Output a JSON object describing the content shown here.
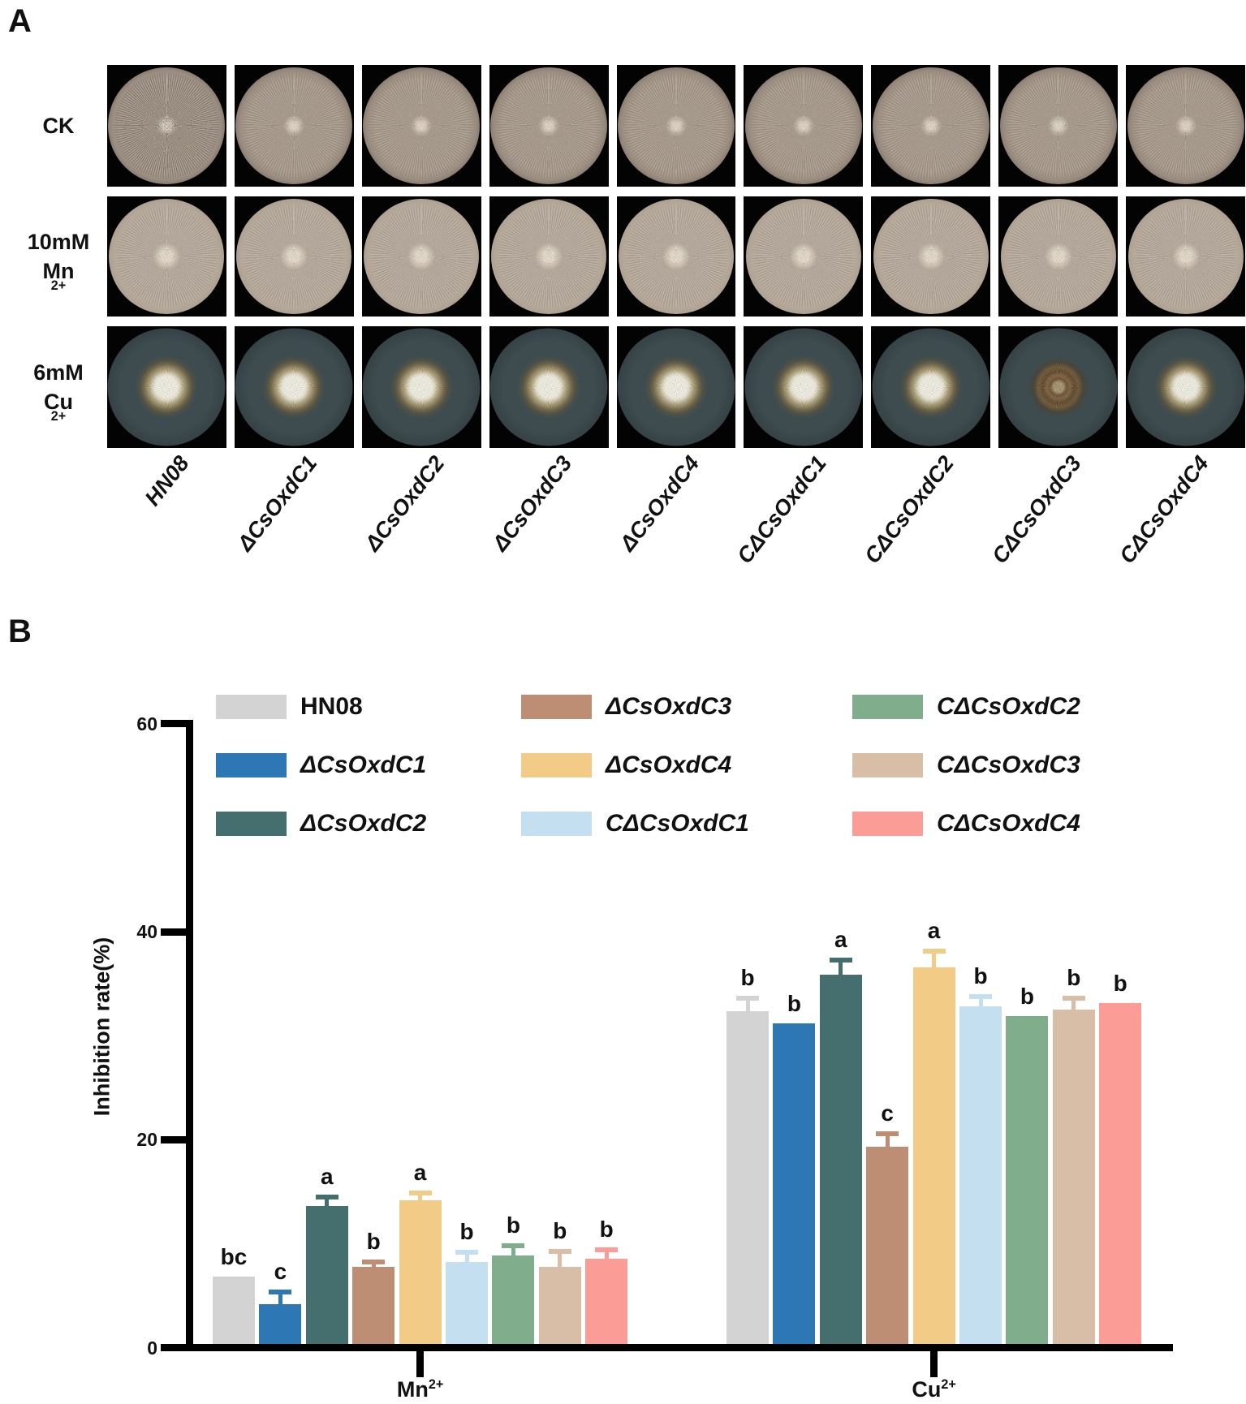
{
  "figure": {
    "panel_a_label": "A",
    "panel_b_label": "B"
  },
  "panel_a": {
    "row_labels": [
      [
        "CK"
      ],
      [
        "10mM",
        "Mn²⁺"
      ],
      [
        "6mM",
        "Cu²⁺"
      ]
    ],
    "column_labels": [
      "HN08",
      "ΔCsOxdC1",
      "ΔCsOxdC2",
      "ΔCsOxdC3",
      "ΔCsOxdC4",
      "CΔCsOxdC1",
      "CΔCsOxdC2",
      "CΔCsOxdC3",
      "CΔCsOxdC4"
    ],
    "dish_types_by_row": [
      "full-colony",
      "full-colony-bright",
      "small-central-colony"
    ]
  },
  "chart_data": {
    "type": "bar",
    "title": "",
    "ylabel": "Inhibition rate(%)",
    "ylim": [
      0,
      60
    ],
    "yticks": [
      0,
      20,
      40,
      60
    ],
    "grid": false,
    "legend_position": "top",
    "groups": [
      "Mn²⁺",
      "Cu²⁺"
    ],
    "series": [
      {
        "name": "HN08",
        "color": "#d3d3d3",
        "values": [
          6.5,
          32.0
        ],
        "errors": [
          0,
          1.3
        ],
        "letters": [
          "bc",
          "b"
        ]
      },
      {
        "name": "ΔCsOxdC1",
        "color": "#2e77b5",
        "values": [
          3.8,
          30.8
        ],
        "errors": [
          1.3,
          0
        ],
        "letters": [
          "c",
          "b"
        ]
      },
      {
        "name": "ΔCsOxdC2",
        "color": "#456f6f",
        "values": [
          13.3,
          35.5
        ],
        "errors": [
          0.9,
          1.5
        ],
        "letters": [
          "a",
          "a"
        ]
      },
      {
        "name": "ΔCsOxdC3",
        "color": "#bd8e74",
        "values": [
          7.4,
          19.0
        ],
        "errors": [
          0.6,
          1.3
        ],
        "letters": [
          "b",
          "c"
        ]
      },
      {
        "name": "ΔCsOxdC4",
        "color": "#f2cb87",
        "values": [
          13.8,
          36.2
        ],
        "errors": [
          0.8,
          1.7
        ],
        "letters": [
          "a",
          "a"
        ]
      },
      {
        "name": "CΔCsOxdC1",
        "color": "#c3dff0",
        "values": [
          7.9,
          32.5
        ],
        "errors": [
          1.0,
          1.0
        ],
        "letters": [
          "b",
          "b"
        ]
      },
      {
        "name": "CΔCsOxdC2",
        "color": "#80ad8c",
        "values": [
          8.5,
          31.5
        ],
        "errors": [
          1.0,
          0
        ],
        "letters": [
          "b",
          "b"
        ]
      },
      {
        "name": "CΔCsOxdC3",
        "color": "#d8bda7",
        "values": [
          7.4,
          32.2
        ],
        "errors": [
          1.6,
          1.1
        ],
        "letters": [
          "b",
          "b"
        ]
      },
      {
        "name": "CΔCsOxdC4",
        "color": "#fc9c97",
        "values": [
          8.2,
          32.8
        ],
        "errors": [
          0.9,
          0
        ],
        "letters": [
          "b",
          "b"
        ]
      }
    ]
  }
}
